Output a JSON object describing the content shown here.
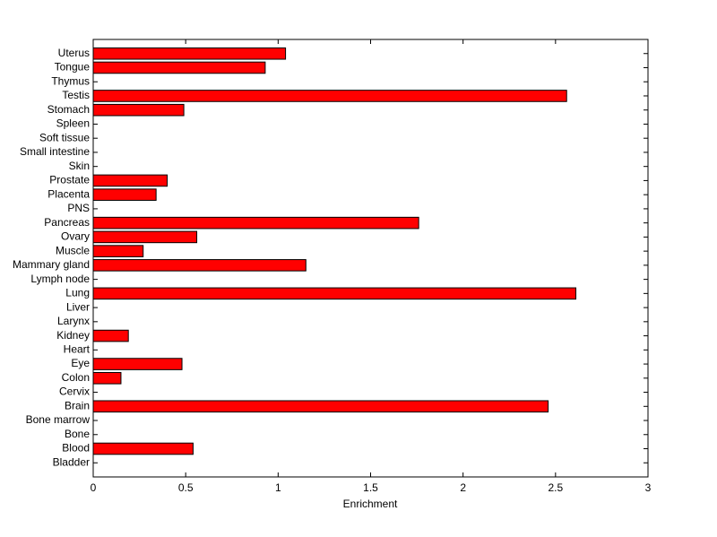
{
  "chart_data": {
    "type": "barh",
    "xlabel": "Enrichment",
    "categories": [
      "Bladder",
      "Blood",
      "Bone",
      "Bone marrow",
      "Brain",
      "Cervix",
      "Colon",
      "Eye",
      "Heart",
      "Kidney",
      "Larynx",
      "Liver",
      "Lung",
      "Lymph node",
      "Mammary gland",
      "Muscle",
      "Ovary",
      "Pancreas",
      "PNS",
      "Placenta",
      "Prostate",
      "Skin",
      "Small intestine",
      "Soft tissue",
      "Spleen",
      "Stomach",
      "Testis",
      "Thymus",
      "Tongue",
      "Uterus"
    ],
    "values": [
      0,
      0.54,
      0,
      0,
      2.46,
      0,
      0.15,
      0.48,
      0,
      0.19,
      0,
      0,
      2.61,
      0,
      1.15,
      0.27,
      0.56,
      1.76,
      0,
      0.34,
      0.4,
      0,
      0,
      0,
      0,
      0.49,
      2.56,
      0,
      0.93,
      1.04
    ],
    "color": "#ff0000",
    "xlim": [
      0,
      3
    ],
    "xticks": [
      0,
      0.5,
      1,
      1.5,
      2,
      2.5,
      3
    ]
  }
}
